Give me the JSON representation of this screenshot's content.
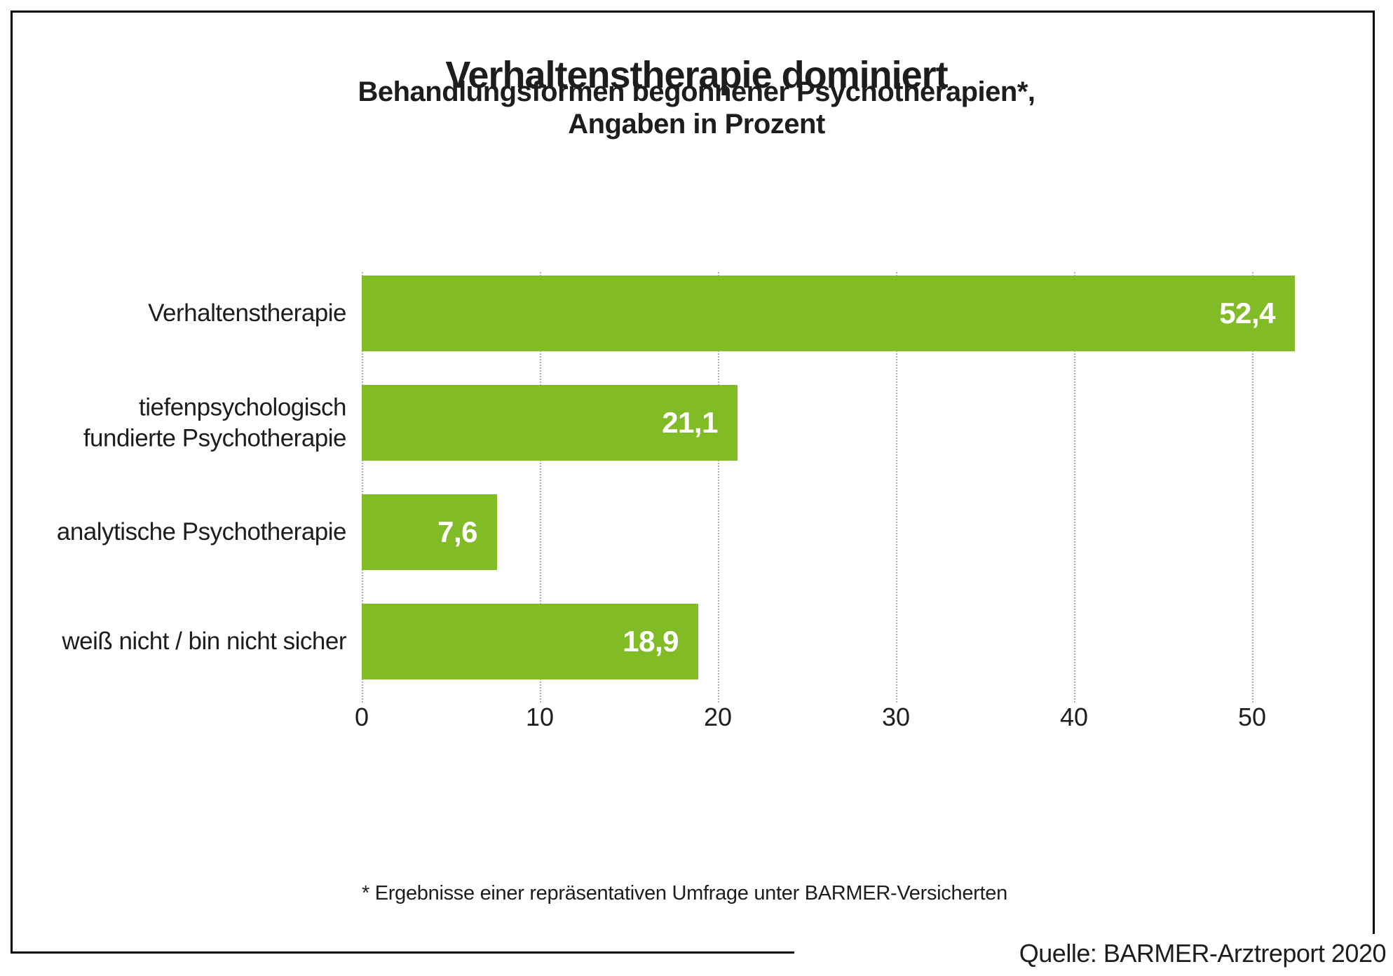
{
  "header": {
    "title": "Verhaltenstherapie dominiert",
    "subtitle": "Behandlungsformen begonnener Psychotherapien*,\nAngaben in Prozent"
  },
  "footnote": "* Ergebnisse einer repräsentativen Umfrage unter BARMER-Versicherten",
  "source": "Quelle: BARMER-Arztreport 2020",
  "colors": {
    "bar": "#81bb26",
    "value_text": "#ffffff",
    "text": "#1d1d1b",
    "grid": "#b0b0b0",
    "frame_border": "#000000"
  },
  "chart_data": {
    "type": "bar",
    "orientation": "horizontal",
    "title": "Verhaltenstherapie dominiert",
    "subtitle": "Behandlungsformen begonnener Psychotherapien*, Angaben in Prozent",
    "unit": "Prozent",
    "categories": [
      "Verhaltenstherapie",
      "tiefenpsychologisch\nfundierte Psychotherapie",
      "analytische Psychotherapie",
      "weiß nicht / bin nicht sicher"
    ],
    "values": [
      52.4,
      21.1,
      7.6,
      18.9
    ],
    "value_labels": [
      "52,4",
      "21,1",
      "7,6",
      "18,9"
    ],
    "xlabel": "",
    "ylabel": "",
    "xlim": [
      0,
      55
    ],
    "xticks": [
      0,
      10,
      20,
      30,
      40,
      50
    ],
    "xtick_labels": [
      "0",
      "10",
      "20",
      "30",
      "40",
      "50"
    ],
    "grid": "vertical-dotted",
    "legend": "none"
  }
}
